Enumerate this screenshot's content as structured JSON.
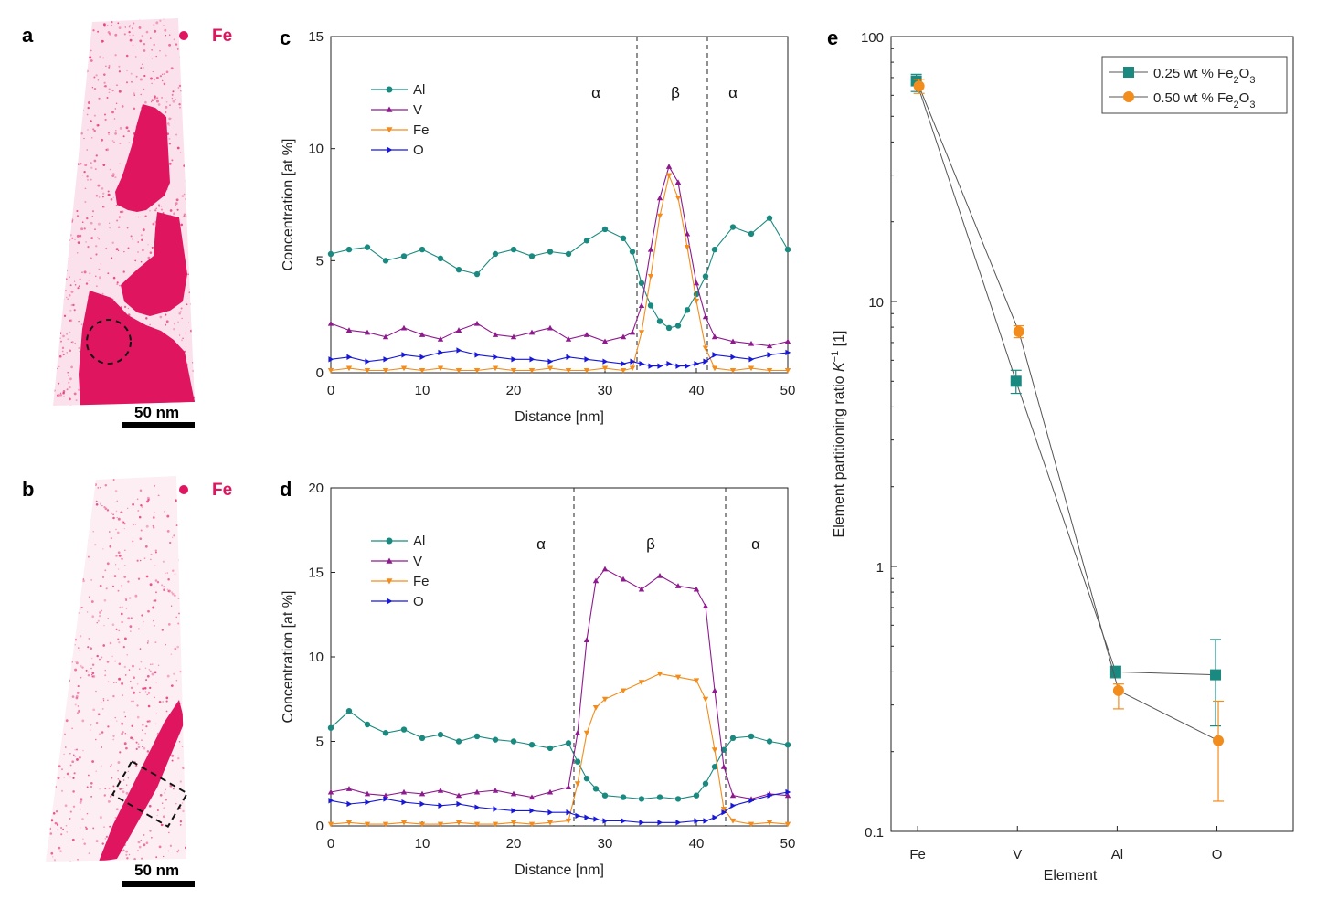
{
  "figure": {
    "panels": {
      "a": {
        "letter": "a",
        "element": "Fe",
        "scale_bar": "50 nm"
      },
      "b": {
        "letter": "b",
        "element": "Fe",
        "scale_bar": "50 nm"
      }
    }
  },
  "chart_data": [
    {
      "id": "c",
      "letter": "c",
      "type": "line",
      "xlabel": "Distance [nm]",
      "ylabel": "Concentration [at %]",
      "xlim": [
        0,
        50
      ],
      "ylim": [
        0,
        15
      ],
      "xticks": [
        0,
        10,
        20,
        30,
        40,
        50
      ],
      "yticks": [
        0,
        5,
        10,
        15
      ],
      "phase_boundaries": [
        33.5,
        41.2
      ],
      "phase_labels": [
        {
          "x": 29,
          "text": "α"
        },
        {
          "x": 37.7,
          "text": "β"
        },
        {
          "x": 44,
          "text": "α"
        }
      ],
      "legend": "upper-left",
      "series": [
        {
          "name": "Al",
          "color": "#1a8a80",
          "marker": "circle",
          "x": [
            0,
            2,
            4,
            6,
            8,
            10,
            12,
            14,
            16,
            18,
            20,
            22,
            24,
            26,
            28,
            30,
            32,
            33,
            34,
            35,
            36,
            37,
            38,
            39,
            40,
            41,
            42,
            44,
            46,
            48,
            50
          ],
          "y": [
            5.3,
            5.5,
            5.6,
            5.0,
            5.2,
            5.5,
            5.1,
            4.6,
            4.4,
            5.3,
            5.5,
            5.2,
            5.4,
            5.3,
            5.9,
            6.4,
            6.0,
            5.4,
            4.0,
            3.0,
            2.3,
            2.0,
            2.1,
            2.8,
            3.5,
            4.3,
            5.5,
            6.5,
            6.2,
            6.9,
            5.5
          ]
        },
        {
          "name": "V",
          "color": "#8e1a8e",
          "marker": "triangle-up",
          "x": [
            0,
            2,
            4,
            6,
            8,
            10,
            12,
            14,
            16,
            18,
            20,
            22,
            24,
            26,
            28,
            30,
            32,
            33,
            34,
            35,
            36,
            37,
            38,
            39,
            40,
            41,
            42,
            44,
            46,
            48,
            50
          ],
          "y": [
            2.2,
            1.9,
            1.8,
            1.6,
            2.0,
            1.7,
            1.5,
            1.9,
            2.2,
            1.7,
            1.6,
            1.8,
            2.0,
            1.5,
            1.7,
            1.4,
            1.6,
            1.8,
            3.0,
            5.5,
            7.8,
            9.2,
            8.5,
            6.2,
            4.0,
            2.5,
            1.6,
            1.4,
            1.3,
            1.2,
            1.4
          ]
        },
        {
          "name": "Fe",
          "color": "#f28c1c",
          "marker": "triangle-down",
          "x": [
            0,
            2,
            4,
            6,
            8,
            10,
            12,
            14,
            16,
            18,
            20,
            22,
            24,
            26,
            28,
            30,
            32,
            33,
            34,
            35,
            36,
            37,
            38,
            39,
            40,
            41,
            42,
            44,
            46,
            48,
            50
          ],
          "y": [
            0.1,
            0.2,
            0.1,
            0.1,
            0.2,
            0.1,
            0.2,
            0.1,
            0.1,
            0.2,
            0.1,
            0.1,
            0.2,
            0.1,
            0.1,
            0.2,
            0.1,
            0.2,
            1.8,
            4.3,
            7.0,
            8.8,
            7.8,
            5.6,
            3.2,
            1.1,
            0.2,
            0.1,
            0.2,
            0.1,
            0.1
          ]
        },
        {
          "name": "O",
          "color": "#1818d8",
          "marker": "triangle-right",
          "x": [
            0,
            2,
            4,
            6,
            8,
            10,
            12,
            14,
            16,
            18,
            20,
            22,
            24,
            26,
            28,
            30,
            32,
            33,
            34,
            35,
            36,
            37,
            38,
            39,
            40,
            41,
            42,
            44,
            46,
            48,
            50
          ],
          "y": [
            0.6,
            0.7,
            0.5,
            0.6,
            0.8,
            0.7,
            0.9,
            1.0,
            0.8,
            0.7,
            0.6,
            0.6,
            0.5,
            0.7,
            0.6,
            0.5,
            0.4,
            0.5,
            0.4,
            0.3,
            0.3,
            0.4,
            0.3,
            0.3,
            0.4,
            0.5,
            0.8,
            0.7,
            0.6,
            0.8,
            0.9
          ]
        }
      ]
    },
    {
      "id": "d",
      "letter": "d",
      "type": "line",
      "xlabel": "Distance [nm]",
      "ylabel": "Concentration [at %]",
      "xlim": [
        0,
        50
      ],
      "ylim": [
        0,
        20
      ],
      "xticks": [
        0,
        10,
        20,
        30,
        40,
        50
      ],
      "yticks": [
        0,
        5,
        10,
        15,
        20
      ],
      "phase_boundaries": [
        26.6,
        43.2
      ],
      "phase_labels": [
        {
          "x": 23,
          "text": "α"
        },
        {
          "x": 35,
          "text": "β"
        },
        {
          "x": 46.5,
          "text": "α"
        }
      ],
      "legend": "upper-left",
      "series": [
        {
          "name": "Al",
          "color": "#1a8a80",
          "marker": "circle",
          "x": [
            0,
            2,
            4,
            6,
            8,
            10,
            12,
            14,
            16,
            18,
            20,
            22,
            24,
            26,
            27,
            28,
            29,
            30,
            32,
            34,
            36,
            38,
            40,
            41,
            42,
            43,
            44,
            46,
            48,
            50
          ],
          "y": [
            5.8,
            6.8,
            6.0,
            5.5,
            5.7,
            5.2,
            5.4,
            5.0,
            5.3,
            5.1,
            5.0,
            4.8,
            4.6,
            4.9,
            3.8,
            2.8,
            2.2,
            1.8,
            1.7,
            1.6,
            1.7,
            1.6,
            1.8,
            2.5,
            3.5,
            4.5,
            5.2,
            5.3,
            5.0,
            4.8
          ]
        },
        {
          "name": "V",
          "color": "#8e1a8e",
          "marker": "triangle-up",
          "x": [
            0,
            2,
            4,
            6,
            8,
            10,
            12,
            14,
            16,
            18,
            20,
            22,
            24,
            26,
            27,
            28,
            29,
            30,
            32,
            34,
            36,
            38,
            40,
            41,
            42,
            43,
            44,
            46,
            48,
            50
          ],
          "y": [
            2.0,
            2.2,
            1.9,
            1.8,
            2.0,
            1.9,
            2.1,
            1.8,
            2.0,
            2.1,
            1.9,
            1.7,
            2.0,
            2.3,
            5.5,
            11.0,
            14.5,
            15.2,
            14.6,
            14.0,
            14.8,
            14.2,
            14.0,
            13.0,
            8.0,
            3.5,
            1.8,
            1.6,
            1.9,
            1.8
          ]
        },
        {
          "name": "Fe",
          "color": "#f28c1c",
          "marker": "triangle-down",
          "x": [
            0,
            2,
            4,
            6,
            8,
            10,
            12,
            14,
            16,
            18,
            20,
            22,
            24,
            26,
            27,
            28,
            29,
            30,
            32,
            34,
            36,
            38,
            40,
            41,
            42,
            43,
            44,
            46,
            48,
            50
          ],
          "y": [
            0.1,
            0.2,
            0.1,
            0.1,
            0.2,
            0.1,
            0.1,
            0.2,
            0.1,
            0.1,
            0.2,
            0.1,
            0.2,
            0.3,
            2.5,
            5.5,
            7.0,
            7.5,
            8.0,
            8.5,
            9.0,
            8.8,
            8.6,
            7.5,
            4.5,
            1.0,
            0.3,
            0.1,
            0.2,
            0.1
          ]
        },
        {
          "name": "O",
          "color": "#1818d8",
          "marker": "triangle-right",
          "x": [
            0,
            2,
            4,
            6,
            8,
            10,
            12,
            14,
            16,
            18,
            20,
            22,
            24,
            26,
            27,
            28,
            29,
            30,
            32,
            34,
            36,
            38,
            40,
            41,
            42,
            43,
            44,
            46,
            48,
            50
          ],
          "y": [
            1.5,
            1.3,
            1.4,
            1.6,
            1.4,
            1.3,
            1.2,
            1.3,
            1.1,
            1.0,
            0.9,
            0.9,
            0.8,
            0.8,
            0.6,
            0.5,
            0.4,
            0.3,
            0.3,
            0.2,
            0.2,
            0.2,
            0.3,
            0.3,
            0.5,
            0.8,
            1.2,
            1.5,
            1.8,
            2.0
          ]
        }
      ]
    },
    {
      "id": "e",
      "letter": "e",
      "type": "scatter",
      "xlabel": "Element",
      "ylabel": "Element partitioning ratio K",
      "ylabel_sup": "−1",
      "ylabel_unit": " [1]",
      "categories": [
        "Fe",
        "V",
        "Al",
        "O"
      ],
      "yscale": "log",
      "ylim": [
        0.1,
        100
      ],
      "yticks": [
        0.1,
        1,
        10,
        100
      ],
      "ytick_labels": [
        "0.1",
        "1",
        "10",
        "100"
      ],
      "legend": "upper-right",
      "series": [
        {
          "name": "0.25 wt % Fe2O3",
          "legend_parts": [
            "0.25 wt % Fe",
            "2",
            "O",
            "3"
          ],
          "color": "#1a8a80",
          "marker": "square",
          "values": [
            68,
            5.0,
            0.4,
            0.39
          ],
          "err_low": [
            62,
            4.5,
            0.38,
            0.25
          ],
          "err_high": [
            72,
            5.5,
            0.42,
            0.53
          ]
        },
        {
          "name": "0.50 wt % Fe2O3",
          "legend_parts": [
            "0.50 wt % Fe",
            "2",
            "O",
            "3"
          ],
          "color": "#f28c1c",
          "marker": "circle",
          "values": [
            65,
            7.7,
            0.34,
            0.22
          ],
          "err_low": [
            61,
            7.3,
            0.29,
            0.13
          ],
          "err_high": [
            69,
            8.1,
            0.36,
            0.31
          ]
        }
      ]
    }
  ]
}
